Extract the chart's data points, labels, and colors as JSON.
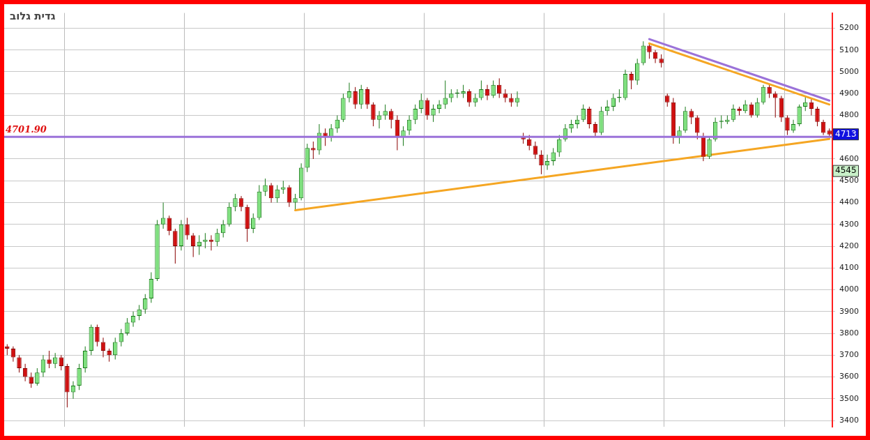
{
  "chart_data": {
    "type": "candlestick",
    "categories": [
      null,
      null,
      null,
      null,
      null,
      null,
      null,
      null,
      null,
      null,
      null,
      null,
      null,
      null,
      null,
      null,
      null,
      null,
      null,
      null,
      null,
      null,
      null,
      null,
      null,
      null,
      null,
      null,
      null,
      null,
      null,
      null,
      null,
      null,
      null,
      null,
      null,
      null,
      null,
      null,
      null,
      null,
      null,
      null,
      null,
      null,
      null,
      null,
      null,
      null,
      null,
      null,
      null,
      null,
      null,
      null,
      null,
      null,
      null,
      null,
      null,
      null,
      null,
      null,
      null,
      null,
      null,
      null,
      null,
      null,
      null,
      null,
      null,
      null,
      null,
      null,
      null,
      null,
      null,
      null,
      null,
      null,
      null,
      null,
      null,
      null,
      null,
      null,
      null,
      null,
      null,
      null,
      null,
      null,
      null,
      null,
      null,
      null,
      null,
      null,
      null,
      null,
      null,
      null,
      null,
      null,
      null,
      null,
      null,
      null,
      null,
      null,
      null,
      null,
      null,
      null,
      null,
      null,
      null,
      null,
      null,
      null,
      null,
      null,
      null,
      null,
      null,
      null,
      null,
      null,
      null,
      null,
      null,
      null,
      null,
      null,
      null,
      null
    ],
    "ohlc": [
      [
        3740,
        3750,
        3700,
        3730
      ],
      [
        3730,
        3740,
        3670,
        3690
      ],
      [
        3690,
        3700,
        3620,
        3640
      ],
      [
        3640,
        3660,
        3580,
        3600
      ],
      [
        3600,
        3620,
        3550,
        3570
      ],
      [
        3570,
        3640,
        3560,
        3620
      ],
      [
        3620,
        3700,
        3600,
        3680
      ],
      [
        3680,
        3720,
        3640,
        3660
      ],
      [
        3660,
        3710,
        3640,
        3690
      ],
      [
        3690,
        3700,
        3630,
        3650
      ],
      [
        3650,
        3660,
        3460,
        3530
      ],
      [
        3530,
        3580,
        3500,
        3560
      ],
      [
        3560,
        3660,
        3540,
        3640
      ],
      [
        3640,
        3740,
        3620,
        3720
      ],
      [
        3720,
        3840,
        3700,
        3830
      ],
      [
        3830,
        3840,
        3740,
        3760
      ],
      [
        3760,
        3780,
        3690,
        3720
      ],
      [
        3720,
        3730,
        3670,
        3700
      ],
      [
        3700,
        3780,
        3680,
        3760
      ],
      [
        3760,
        3820,
        3740,
        3800
      ],
      [
        3800,
        3870,
        3790,
        3850
      ],
      [
        3850,
        3900,
        3830,
        3880
      ],
      [
        3880,
        3930,
        3860,
        3910
      ],
      [
        3910,
        3980,
        3890,
        3960
      ],
      [
        3960,
        4080,
        3940,
        4050
      ],
      [
        4050,
        4320,
        4040,
        4300
      ],
      [
        4300,
        4400,
        4280,
        4330
      ],
      [
        4330,
        4340,
        4250,
        4270
      ],
      [
        4270,
        4280,
        4120,
        4200
      ],
      [
        4200,
        4320,
        4180,
        4300
      ],
      [
        4300,
        4330,
        4230,
        4250
      ],
      [
        4250,
        4260,
        4150,
        4200
      ],
      [
        4200,
        4250,
        4160,
        4220
      ],
      [
        4220,
        4260,
        4190,
        4230
      ],
      [
        4230,
        4250,
        4180,
        4220
      ],
      [
        4220,
        4280,
        4200,
        4260
      ],
      [
        4260,
        4320,
        4240,
        4300
      ],
      [
        4300,
        4400,
        4290,
        4380
      ],
      [
        4380,
        4440,
        4360,
        4420
      ],
      [
        4420,
        4430,
        4360,
        4380
      ],
      [
        4380,
        4390,
        4220,
        4280
      ],
      [
        4280,
        4350,
        4260,
        4330
      ],
      [
        4330,
        4480,
        4320,
        4450
      ],
      [
        4450,
        4510,
        4430,
        4480
      ],
      [
        4480,
        4490,
        4400,
        4420
      ],
      [
        4420,
        4480,
        4400,
        4460
      ],
      [
        4460,
        4500,
        4440,
        4470
      ],
      [
        4470,
        4480,
        4380,
        4400
      ],
      [
        4400,
        4440,
        4365,
        4420
      ],
      [
        4420,
        4580,
        4410,
        4560
      ],
      [
        4560,
        4670,
        4540,
        4650
      ],
      [
        4650,
        4680,
        4600,
        4640
      ],
      [
        4640,
        4760,
        4620,
        4720
      ],
      [
        4720,
        4740,
        4660,
        4700
      ],
      [
        4700,
        4760,
        4680,
        4740
      ],
      [
        4740,
        4800,
        4720,
        4780
      ],
      [
        4780,
        4900,
        4770,
        4880
      ],
      [
        4880,
        4950,
        4860,
        4910
      ],
      [
        4910,
        4930,
        4830,
        4850
      ],
      [
        4850,
        4940,
        4830,
        4920
      ],
      [
        4920,
        4930,
        4830,
        4850
      ],
      [
        4850,
        4860,
        4750,
        4780
      ],
      [
        4780,
        4820,
        4740,
        4800
      ],
      [
        4800,
        4850,
        4780,
        4820
      ],
      [
        4820,
        4830,
        4740,
        4780
      ],
      [
        4780,
        4800,
        4640,
        4700
      ],
      [
        4700,
        4750,
        4660,
        4730
      ],
      [
        4730,
        4800,
        4710,
        4780
      ],
      [
        4780,
        4850,
        4760,
        4830
      ],
      [
        4830,
        4900,
        4810,
        4870
      ],
      [
        4870,
        4880,
        4780,
        4800
      ],
      [
        4800,
        4850,
        4770,
        4830
      ],
      [
        4830,
        4870,
        4810,
        4850
      ],
      [
        4850,
        4960,
        4830,
        4880
      ],
      [
        4880,
        4920,
        4860,
        4900
      ],
      [
        4900,
        4920,
        4880,
        4905
      ],
      [
        4900,
        4940,
        4880,
        4910
      ],
      [
        4910,
        4920,
        4840,
        4860
      ],
      [
        4860,
        4900,
        4840,
        4880
      ],
      [
        4880,
        4960,
        4870,
        4920
      ],
      [
        4920,
        4940,
        4870,
        4890
      ],
      [
        4890,
        4960,
        4880,
        4940
      ],
      [
        4940,
        4970,
        4880,
        4900
      ],
      [
        4900,
        4920,
        4860,
        4880
      ],
      [
        4880,
        4900,
        4840,
        4860
      ],
      [
        4860,
        4910,
        4840,
        4880
      ],
      [
        4700,
        4720,
        4670,
        4690
      ],
      [
        4690,
        4710,
        4640,
        4660
      ],
      [
        4660,
        4680,
        4600,
        4620
      ],
      [
        4620,
        4640,
        4530,
        4570
      ],
      [
        4570,
        4620,
        4550,
        4590
      ],
      [
        4590,
        4650,
        4570,
        4630
      ],
      [
        4630,
        4710,
        4610,
        4690
      ],
      [
        4690,
        4760,
        4680,
        4740
      ],
      [
        4740,
        4780,
        4720,
        4760
      ],
      [
        4760,
        4800,
        4740,
        4780
      ],
      [
        4780,
        4850,
        4770,
        4830
      ],
      [
        4830,
        4840,
        4740,
        4760
      ],
      [
        4760,
        4770,
        4700,
        4720
      ],
      [
        4720,
        4840,
        4710,
        4820
      ],
      [
        4820,
        4870,
        4800,
        4840
      ],
      [
        4840,
        4900,
        4820,
        4880
      ],
      [
        4880,
        4920,
        4860,
        4885
      ],
      [
        4880,
        5010,
        4870,
        4990
      ],
      [
        4990,
        5000,
        4920,
        4960
      ],
      [
        4960,
        5060,
        4940,
        5040
      ],
      [
        5040,
        5140,
        5030,
        5120
      ],
      [
        5120,
        5130,
        5060,
        5090
      ],
      [
        5090,
        5100,
        5040,
        5060
      ],
      [
        5060,
        5080,
        5020,
        5040
      ],
      [
        4890,
        4900,
        4840,
        4860
      ],
      [
        4860,
        4880,
        4670,
        4700
      ],
      [
        4700,
        4750,
        4670,
        4730
      ],
      [
        4730,
        4840,
        4720,
        4820
      ],
      [
        4820,
        4830,
        4760,
        4790
      ],
      [
        4790,
        4800,
        4690,
        4720
      ],
      [
        4700,
        4720,
        4590,
        4610
      ],
      [
        4610,
        4700,
        4600,
        4690
      ],
      [
        4690,
        4790,
        4680,
        4770
      ],
      [
        4770,
        4800,
        4740,
        4775
      ],
      [
        4770,
        4800,
        4760,
        4780
      ],
      [
        4780,
        4850,
        4770,
        4830
      ],
      [
        4830,
        4840,
        4800,
        4820
      ],
      [
        4820,
        4870,
        4810,
        4850
      ],
      [
        4850,
        4860,
        4790,
        4800
      ],
      [
        4800,
        4880,
        4790,
        4860
      ],
      [
        4860,
        4940,
        4850,
        4930
      ],
      [
        4930,
        4940,
        4880,
        4900
      ],
      [
        4900,
        4910,
        4790,
        4880
      ],
      [
        4880,
        4890,
        4770,
        4790
      ],
      [
        4790,
        4800,
        4710,
        4730
      ],
      [
        4730,
        4780,
        4720,
        4760
      ],
      [
        4760,
        4850,
        4750,
        4840
      ],
      [
        4840,
        4890,
        4820,
        4860
      ],
      [
        4860,
        4880,
        4800,
        4830
      ],
      [
        4830,
        4840,
        4750,
        4770
      ],
      [
        4770,
        4780,
        4710,
        4720
      ],
      [
        4730,
        4740,
        4700,
        4713
      ]
    ],
    "series": [
      {
        "type": "line",
        "color": "#f5a623",
        "values": [
          null,
          null,
          null,
          null,
          null,
          null,
          null,
          null,
          null,
          null,
          null,
          null,
          null,
          null,
          null,
          null,
          null,
          null,
          null,
          null,
          null,
          null,
          null,
          null,
          null,
          null,
          null,
          null,
          null,
          null,
          null,
          null,
          null,
          null,
          null,
          null,
          null,
          null,
          null,
          null,
          null,
          null,
          null,
          null,
          null,
          null,
          null,
          null,
          4365,
          null,
          null,
          null,
          null,
          null,
          null,
          null,
          null,
          null,
          null,
          null,
          null,
          null,
          null,
          null,
          null,
          null,
          null,
          null,
          null,
          null,
          null,
          null,
          null,
          null,
          null,
          null,
          null,
          null,
          null,
          null,
          null,
          null,
          null,
          null,
          null,
          null,
          null,
          null,
          null,
          null,
          null,
          null,
          null,
          null,
          null,
          null,
          null,
          null,
          null,
          null,
          null,
          null,
          null,
          null,
          null,
          null,
          null,
          null,
          null,
          null,
          null,
          null,
          null,
          null,
          null,
          null,
          null,
          null,
          null,
          null,
          null,
          null,
          null,
          null,
          null,
          null,
          null,
          null,
          null,
          null,
          null,
          null,
          null,
          null,
          null,
          null,
          null,
          4692
        ]
      },
      {
        "type": "line",
        "color": "#f5a623",
        "values": [
          null,
          null,
          null,
          null,
          null,
          null,
          null,
          null,
          null,
          null,
          null,
          null,
          null,
          null,
          null,
          null,
          null,
          null,
          null,
          null,
          null,
          null,
          null,
          null,
          null,
          null,
          null,
          null,
          null,
          null,
          null,
          null,
          null,
          null,
          null,
          null,
          null,
          null,
          null,
          null,
          null,
          null,
          null,
          null,
          null,
          null,
          null,
          null,
          null,
          null,
          null,
          null,
          null,
          null,
          null,
          null,
          null,
          null,
          null,
          null,
          null,
          null,
          null,
          null,
          null,
          null,
          null,
          null,
          null,
          null,
          null,
          null,
          null,
          null,
          null,
          null,
          null,
          null,
          null,
          null,
          null,
          null,
          null,
          null,
          null,
          null,
          null,
          null,
          null,
          null,
          null,
          null,
          null,
          null,
          null,
          null,
          null,
          null,
          null,
          null,
          null,
          null,
          null,
          null,
          null,
          null,
          null,
          5130,
          null,
          null,
          null,
          null,
          null,
          null,
          null,
          null,
          null,
          null,
          null,
          null,
          null,
          null,
          null,
          null,
          null,
          null,
          null,
          null,
          null,
          null,
          null,
          null,
          null,
          null,
          null,
          null,
          null,
          4850
        ]
      },
      {
        "type": "line",
        "color": "#9b72d9",
        "values": [
          null,
          null,
          null,
          null,
          null,
          null,
          null,
          null,
          null,
          null,
          null,
          null,
          null,
          null,
          null,
          null,
          null,
          null,
          null,
          null,
          null,
          null,
          null,
          null,
          null,
          null,
          null,
          null,
          null,
          null,
          null,
          null,
          null,
          null,
          null,
          null,
          null,
          null,
          null,
          null,
          null,
          null,
          null,
          null,
          null,
          null,
          null,
          null,
          null,
          null,
          null,
          null,
          null,
          null,
          null,
          null,
          null,
          null,
          null,
          null,
          null,
          null,
          null,
          null,
          null,
          null,
          null,
          null,
          null,
          null,
          null,
          null,
          null,
          null,
          null,
          null,
          null,
          null,
          null,
          null,
          null,
          null,
          null,
          null,
          null,
          null,
          null,
          null,
          null,
          null,
          null,
          null,
          null,
          null,
          null,
          null,
          null,
          null,
          null,
          null,
          null,
          null,
          null,
          null,
          null,
          null,
          null,
          5150,
          null,
          null,
          null,
          null,
          null,
          null,
          null,
          null,
          null,
          null,
          null,
          null,
          null,
          null,
          null,
          null,
          null,
          null,
          null,
          null,
          null,
          null,
          null,
          null,
          null,
          null,
          null,
          null,
          null,
          4868
        ]
      }
    ],
    "ref_lines": [
      {
        "axis": "y",
        "value": 4701.9,
        "label": "4701.90",
        "color": "#9b72d9"
      }
    ],
    "annotations": [
      "גדית גלוב",
      {
        "text": "4713",
        "y": 4713
      },
      {
        "text": "4545",
        "y": 4545
      }
    ],
    "ylim": [
      3370,
      5270
    ],
    "yticks": [
      3400,
      3500,
      3600,
      3700,
      3800,
      3900,
      4000,
      4100,
      4200,
      4300,
      4400,
      4500,
      4600,
      4800,
      4900,
      5000,
      5100,
      5200
    ],
    "grid": true,
    "tick_labels": "y",
    "marker": "none"
  }
}
